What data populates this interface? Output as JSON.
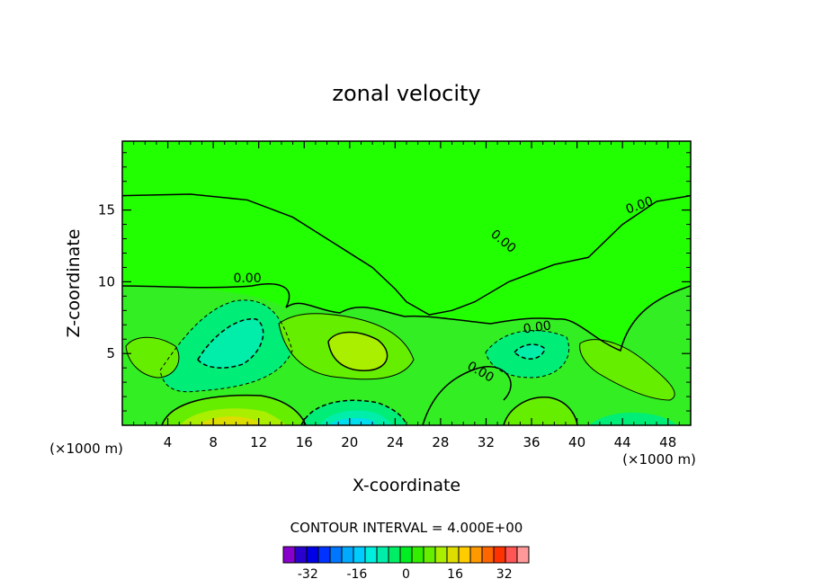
{
  "chart_data": {
    "type": "contour",
    "title": "zonal velocity",
    "xlabel": "X-coordinate",
    "ylabel": "Z-coordinate",
    "x_unit_label": "(×1000 m)",
    "xlim": [
      0,
      50
    ],
    "ylim": [
      0,
      19.8
    ],
    "x_ticks": [
      4,
      8,
      12,
      16,
      20,
      24,
      28,
      32,
      36,
      40,
      44,
      48
    ],
    "y_ticks": [
      5,
      10,
      15
    ],
    "contour_interval_text": "CONTOUR INTERVAL = 4.000E+00",
    "contour_labels": [
      "0.00",
      "0.00",
      "0.00",
      "0.00",
      "0.00"
    ],
    "zero_contour": [
      [
        0,
        16
      ],
      [
        6,
        16.1
      ],
      [
        11,
        15.7
      ],
      [
        15,
        14.5
      ],
      [
        19,
        12.5
      ],
      [
        22,
        11
      ],
      [
        24,
        9.5
      ],
      [
        25,
        8.6
      ],
      [
        27,
        7.7
      ],
      [
        29,
        8
      ],
      [
        31,
        8.6
      ],
      [
        34,
        10
      ],
      [
        38,
        11.2
      ],
      [
        41,
        11.7
      ],
      [
        44,
        14
      ],
      [
        47,
        15.6
      ],
      [
        50,
        16
      ]
    ],
    "colorbar": {
      "levels": [
        -40,
        -36,
        -32,
        -28,
        -24,
        -20,
        -16,
        -12,
        -8,
        -4,
        0,
        4,
        8,
        12,
        16,
        20,
        24,
        28,
        32,
        36,
        40
      ],
      "colors": [
        "#8800cc",
        "#2a00cc",
        "#0000e6",
        "#0033ff",
        "#0077ff",
        "#00aaff",
        "#00ccff",
        "#00eedd",
        "#00eeaa",
        "#00ee66",
        "#00ee22",
        "#33ee00",
        "#66ee00",
        "#aaee00",
        "#dddd00",
        "#ffcc00",
        "#ff9900",
        "#ff6600",
        "#ff3300",
        "#ff5555",
        "#ff9999"
      ],
      "tick_labels": [
        "-32",
        "-16",
        "0",
        "16",
        "32"
      ],
      "tick_values": [
        -32,
        -16,
        0,
        16,
        32
      ]
    }
  }
}
